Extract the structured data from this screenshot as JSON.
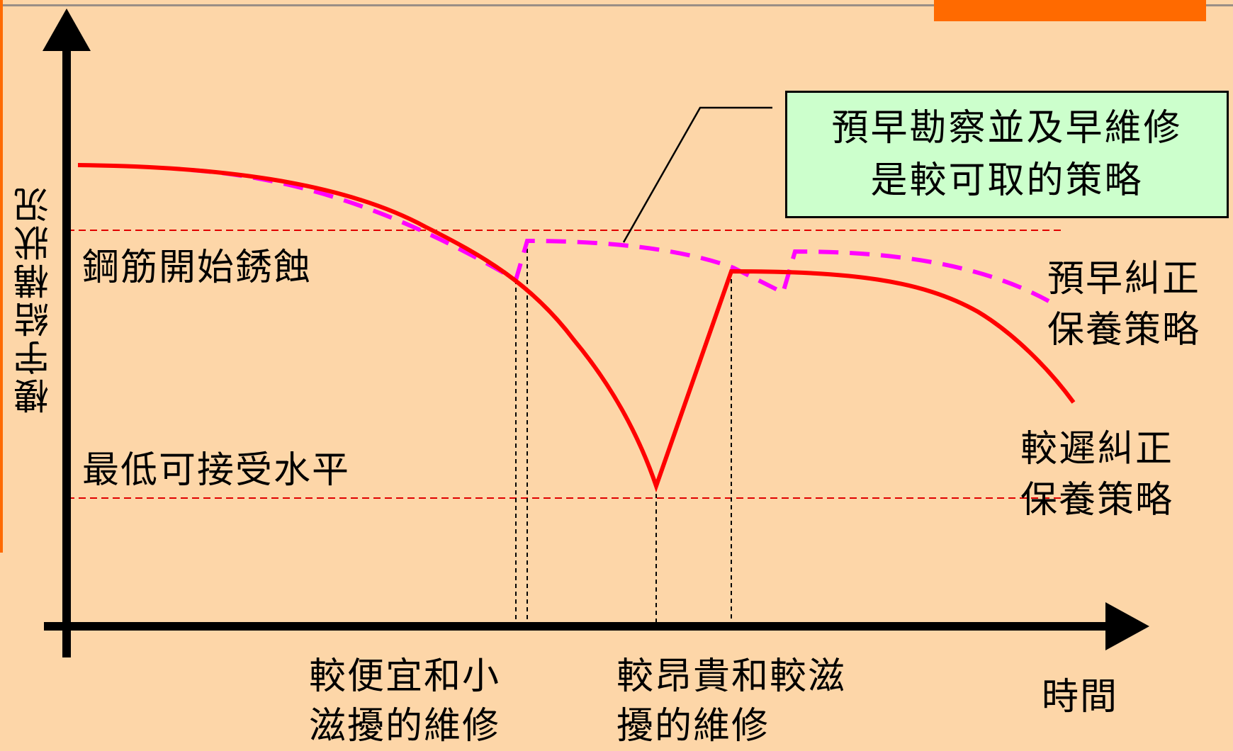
{
  "y_axis_label": "樓宇結構狀況",
  "x_axis_label": "時間",
  "threshold_labels": {
    "corrosion": "鋼筋開始銹蝕",
    "minimum": "最低可接受水平"
  },
  "callout": {
    "line1": "預早勘察並及早維修",
    "line2": "是較可取的策略"
  },
  "series": {
    "early": {
      "line1": "預早糾正",
      "line2": "保養策略",
      "color": "#ff00ff",
      "style": "dashed"
    },
    "late": {
      "line1": "較遲糾正",
      "line2": "保養策略",
      "color": "#ff0000",
      "style": "solid"
    }
  },
  "x_annotations": {
    "cheap": {
      "line1": "較便宜和小",
      "line2": "滋擾的維修"
    },
    "expensive": {
      "line1": "較昂貴和較滋",
      "line2": "擾的維修"
    }
  },
  "colors": {
    "background": "#fdd6a8",
    "threshold": "#e00000",
    "axis": "#000000"
  }
}
